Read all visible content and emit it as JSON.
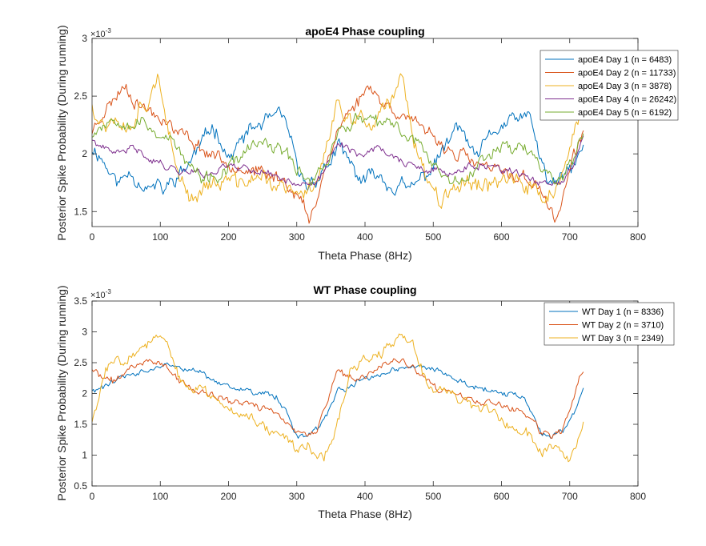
{
  "figure": {
    "background": "#ffffff",
    "axis_color": "#262626"
  },
  "chart_data": [
    {
      "type": "line",
      "title": "apoE4 Phase coupling",
      "xlabel": "Theta Phase (8Hz)",
      "ylabel": "Posterior Spike Probability (During running)",
      "exponent_label": "×10",
      "exponent_power": "-3",
      "xlim": [
        0,
        800
      ],
      "ylim": [
        1.37,
        3.0
      ],
      "xticks": [
        0,
        100,
        200,
        300,
        400,
        500,
        600,
        700,
        800
      ],
      "yticks": [
        1.5,
        2,
        2.5,
        3
      ],
      "ytick_labels": [
        "1.5",
        "2",
        "2.5",
        "3"
      ],
      "grid": false,
      "legend_position": "top-right",
      "x_period": 360,
      "x_max": 720,
      "series": [
        {
          "name": "apoE4 Day 1 (n = 6483)",
          "color": "#0072BD",
          "noise": 0.07,
          "seed": 11,
          "anchors": [
            [
              0,
              2.05
            ],
            [
              10,
              2.0
            ],
            [
              20,
              1.9
            ],
            [
              30,
              1.8
            ],
            [
              40,
              1.75
            ],
            [
              55,
              1.85
            ],
            [
              70,
              1.75
            ],
            [
              85,
              1.7
            ],
            [
              95,
              1.72
            ],
            [
              105,
              1.68
            ],
            [
              120,
              1.78
            ],
            [
              135,
              1.85
            ],
            [
              150,
              2.0
            ],
            [
              165,
              2.12
            ],
            [
              175,
              2.25
            ],
            [
              185,
              2.18
            ],
            [
              200,
              1.95
            ],
            [
              215,
              2.08
            ],
            [
              230,
              2.2
            ],
            [
              245,
              2.25
            ],
            [
              260,
              2.3
            ],
            [
              275,
              2.32
            ],
            [
              285,
              2.28
            ],
            [
              295,
              2.0
            ],
            [
              305,
              1.8
            ],
            [
              315,
              1.72
            ],
            [
              325,
              1.78
            ],
            [
              335,
              1.82
            ],
            [
              345,
              1.9
            ],
            [
              360,
              2.05
            ]
          ]
        },
        {
          "name": "apoE4 Day 2 (n = 11733)",
          "color": "#D95319",
          "noise": 0.06,
          "seed": 23,
          "anchors": [
            [
              0,
              2.2
            ],
            [
              10,
              2.3
            ],
            [
              20,
              2.4
            ],
            [
              30,
              2.45
            ],
            [
              40,
              2.55
            ],
            [
              50,
              2.6
            ],
            [
              60,
              2.48
            ],
            [
              70,
              2.42
            ],
            [
              80,
              2.4
            ],
            [
              90,
              2.35
            ],
            [
              100,
              2.32
            ],
            [
              110,
              2.3
            ],
            [
              120,
              2.2
            ],
            [
              130,
              2.18
            ],
            [
              140,
              2.15
            ],
            [
              150,
              2.1
            ],
            [
              160,
              2.05
            ],
            [
              170,
              2.0
            ],
            [
              180,
              2.0
            ],
            [
              190,
              1.95
            ],
            [
              200,
              1.92
            ],
            [
              210,
              1.9
            ],
            [
              220,
              1.88
            ],
            [
              230,
              1.85
            ],
            [
              240,
              1.85
            ],
            [
              250,
              1.82
            ],
            [
              260,
              1.8
            ],
            [
              270,
              1.8
            ],
            [
              280,
              1.78
            ],
            [
              290,
              1.72
            ],
            [
              300,
              1.65
            ],
            [
              310,
              1.55
            ],
            [
              318,
              1.4
            ],
            [
              326,
              1.55
            ],
            [
              335,
              1.75
            ],
            [
              345,
              1.95
            ],
            [
              360,
              2.2
            ]
          ]
        },
        {
          "name": "apoE4 Day 3 (n = 3878)",
          "color": "#EDB120",
          "noise": 0.08,
          "seed": 37,
          "anchors": [
            [
              0,
              2.45
            ],
            [
              10,
              2.3
            ],
            [
              20,
              2.25
            ],
            [
              30,
              2.35
            ],
            [
              40,
              2.3
            ],
            [
              50,
              2.2
            ],
            [
              60,
              2.3
            ],
            [
              70,
              2.4
            ],
            [
              80,
              2.45
            ],
            [
              90,
              2.6
            ],
            [
              96,
              2.72
            ],
            [
              102,
              2.45
            ],
            [
              110,
              2.2
            ],
            [
              120,
              1.95
            ],
            [
              130,
              1.8
            ],
            [
              140,
              1.68
            ],
            [
              150,
              1.6
            ],
            [
              160,
              1.7
            ],
            [
              170,
              1.75
            ],
            [
              180,
              1.72
            ],
            [
              190,
              1.75
            ],
            [
              200,
              1.78
            ],
            [
              210,
              1.75
            ],
            [
              220,
              1.72
            ],
            [
              230,
              1.8
            ],
            [
              240,
              1.78
            ],
            [
              250,
              1.8
            ],
            [
              260,
              1.75
            ],
            [
              270,
              1.72
            ],
            [
              280,
              1.7
            ],
            [
              290,
              1.68
            ],
            [
              300,
              1.62
            ],
            [
              310,
              1.65
            ],
            [
              320,
              1.7
            ],
            [
              330,
              1.8
            ],
            [
              340,
              2.0
            ],
            [
              350,
              2.2
            ],
            [
              360,
              2.45
            ]
          ]
        },
        {
          "name": "apoE4 Day 4 (n = 26242)",
          "color": "#7E2F8E",
          "noise": 0.035,
          "seed": 41,
          "anchors": [
            [
              0,
              2.12
            ],
            [
              15,
              2.05
            ],
            [
              30,
              2.0
            ],
            [
              45,
              2.02
            ],
            [
              60,
              2.05
            ],
            [
              75,
              2.0
            ],
            [
              90,
              1.95
            ],
            [
              105,
              1.9
            ],
            [
              120,
              1.87
            ],
            [
              135,
              1.85
            ],
            [
              150,
              1.85
            ],
            [
              165,
              1.82
            ],
            [
              180,
              1.85
            ],
            [
              195,
              1.9
            ],
            [
              210,
              1.9
            ],
            [
              225,
              1.88
            ],
            [
              240,
              1.85
            ],
            [
              255,
              1.85
            ],
            [
              270,
              1.8
            ],
            [
              285,
              1.78
            ],
            [
              300,
              1.75
            ],
            [
              315,
              1.72
            ],
            [
              330,
              1.75
            ],
            [
              345,
              1.9
            ],
            [
              360,
              2.12
            ]
          ]
        },
        {
          "name": "apoE4 Day 5 (n = 6192)",
          "color": "#77AC30",
          "noise": 0.06,
          "seed": 53,
          "anchors": [
            [
              0,
              2.18
            ],
            [
              15,
              2.25
            ],
            [
              30,
              2.3
            ],
            [
              45,
              2.3
            ],
            [
              60,
              2.25
            ],
            [
              75,
              2.28
            ],
            [
              90,
              2.2
            ],
            [
              105,
              2.15
            ],
            [
              120,
              2.1
            ],
            [
              135,
              1.95
            ],
            [
              150,
              1.85
            ],
            [
              165,
              1.75
            ],
            [
              175,
              1.82
            ],
            [
              190,
              1.78
            ],
            [
              200,
              1.88
            ],
            [
              215,
              1.95
            ],
            [
              230,
              2.05
            ],
            [
              245,
              2.1
            ],
            [
              260,
              2.05
            ],
            [
              275,
              2.05
            ],
            [
              290,
              1.95
            ],
            [
              300,
              1.88
            ],
            [
              310,
              1.82
            ],
            [
              320,
              1.78
            ],
            [
              330,
              1.82
            ],
            [
              345,
              1.95
            ],
            [
              360,
              2.18
            ]
          ]
        }
      ]
    },
    {
      "type": "line",
      "title": "WT Phase coupling",
      "xlabel": "Theta Phase (8Hz)",
      "ylabel": "Posterior Spike Probability (During running)",
      "exponent_label": "×10",
      "exponent_power": "-3",
      "xlim": [
        0,
        800
      ],
      "ylim": [
        0.5,
        3.5
      ],
      "xticks": [
        0,
        100,
        200,
        300,
        400,
        500,
        600,
        700,
        800
      ],
      "yticks": [
        0.5,
        1,
        1.5,
        2,
        2.5,
        3,
        3.5
      ],
      "ytick_labels": [
        "0.5",
        "1",
        "1.5",
        "2",
        "2.5",
        "3",
        "3.5"
      ],
      "grid": false,
      "legend_position": "top-right",
      "x_period": 360,
      "x_max": 720,
      "series": [
        {
          "name": "WT Day 1 (n = 8336)",
          "color": "#0072BD",
          "noise": 0.05,
          "seed": 61,
          "anchors": [
            [
              0,
              2.05
            ],
            [
              15,
              2.1
            ],
            [
              30,
              2.2
            ],
            [
              45,
              2.25
            ],
            [
              60,
              2.3
            ],
            [
              75,
              2.35
            ],
            [
              90,
              2.4
            ],
            [
              105,
              2.45
            ],
            [
              120,
              2.45
            ],
            [
              135,
              2.4
            ],
            [
              150,
              2.35
            ],
            [
              165,
              2.3
            ],
            [
              180,
              2.2
            ],
            [
              195,
              2.1
            ],
            [
              210,
              2.1
            ],
            [
              225,
              2.05
            ],
            [
              240,
              2.0
            ],
            [
              255,
              2.0
            ],
            [
              270,
              1.95
            ],
            [
              285,
              1.7
            ],
            [
              300,
              1.3
            ],
            [
              315,
              1.3
            ],
            [
              330,
              1.4
            ],
            [
              345,
              1.65
            ],
            [
              360,
              2.05
            ]
          ]
        },
        {
          "name": "WT Day 2 (n = 3710)",
          "color": "#D95319",
          "noise": 0.06,
          "seed": 71,
          "anchors": [
            [
              0,
              2.4
            ],
            [
              15,
              2.25
            ],
            [
              30,
              2.2
            ],
            [
              45,
              2.3
            ],
            [
              60,
              2.45
            ],
            [
              75,
              2.5
            ],
            [
              90,
              2.55
            ],
            [
              105,
              2.45
            ],
            [
              120,
              2.3
            ],
            [
              135,
              2.15
            ],
            [
              150,
              2.05
            ],
            [
              165,
              2.0
            ],
            [
              180,
              1.95
            ],
            [
              195,
              1.9
            ],
            [
              210,
              1.85
            ],
            [
              225,
              1.85
            ],
            [
              240,
              1.8
            ],
            [
              255,
              1.75
            ],
            [
              270,
              1.7
            ],
            [
              285,
              1.55
            ],
            [
              300,
              1.35
            ],
            [
              315,
              1.3
            ],
            [
              330,
              1.4
            ],
            [
              345,
              1.9
            ],
            [
              360,
              2.4
            ]
          ]
        },
        {
          "name": "WT Day 3 (n = 2349)",
          "color": "#EDB120",
          "noise": 0.09,
          "seed": 83,
          "anchors": [
            [
              0,
              1.55
            ],
            [
              10,
              1.9
            ],
            [
              20,
              2.4
            ],
            [
              35,
              2.55
            ],
            [
              50,
              2.6
            ],
            [
              65,
              2.65
            ],
            [
              80,
              2.8
            ],
            [
              95,
              2.9
            ],
            [
              110,
              2.8
            ],
            [
              120,
              2.5
            ],
            [
              130,
              2.15
            ],
            [
              140,
              2.05
            ],
            [
              155,
              2.1
            ],
            [
              170,
              2.0
            ],
            [
              185,
              1.9
            ],
            [
              200,
              1.75
            ],
            [
              215,
              1.7
            ],
            [
              230,
              1.65
            ],
            [
              245,
              1.55
            ],
            [
              260,
              1.4
            ],
            [
              275,
              1.35
            ],
            [
              290,
              1.25
            ],
            [
              300,
              1.05
            ],
            [
              315,
              1.2
            ],
            [
              330,
              1.0
            ],
            [
              340,
              0.95
            ],
            [
              350,
              1.2
            ],
            [
              360,
              1.55
            ]
          ]
        }
      ]
    }
  ]
}
